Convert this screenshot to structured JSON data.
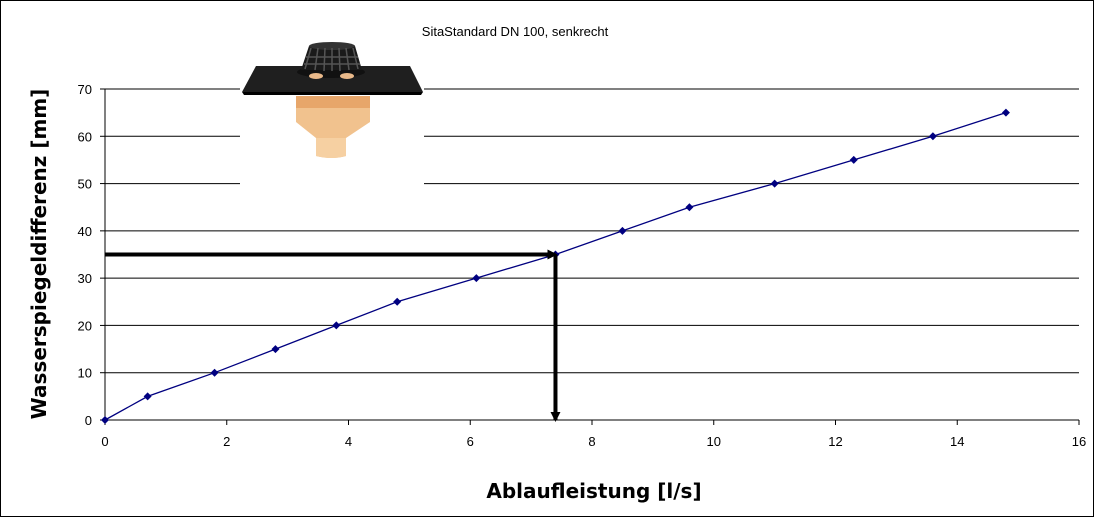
{
  "chart_data": {
    "type": "line",
    "title": "SitaStandard DN 100, senkrecht",
    "xlabel": "Ablaufleistung [l/s]",
    "ylabel": "Wasserspiegeldifferenz [mm]",
    "xlim": [
      0,
      16
    ],
    "ylim": [
      0,
      70
    ],
    "x_ticks": [
      "0",
      "2",
      "4",
      "6",
      "8",
      "10",
      "12",
      "14",
      "16"
    ],
    "y_ticks": [
      "0",
      "10",
      "20",
      "30",
      "40",
      "50",
      "60",
      "70"
    ],
    "grid": "horizontal",
    "series": [
      {
        "color": "#000080",
        "points": [
          [
            0,
            0
          ],
          [
            0.7,
            5
          ],
          [
            1.8,
            10
          ],
          [
            2.8,
            15
          ],
          [
            3.8,
            20
          ],
          [
            4.8,
            25
          ],
          [
            6.1,
            30
          ],
          [
            7.4,
            35
          ],
          [
            8.5,
            40
          ],
          [
            9.6,
            45
          ],
          [
            11.0,
            50
          ],
          [
            12.3,
            55
          ],
          [
            13.6,
            60
          ],
          [
            14.8,
            65
          ]
        ]
      }
    ],
    "annotations": [
      {
        "type": "arrow",
        "from": [
          0,
          35
        ],
        "to": [
          7.4,
          35
        ],
        "color": "#000000"
      },
      {
        "type": "arrow",
        "from": [
          7.4,
          35
        ],
        "to": [
          7.4,
          0
        ],
        "color": "#000000"
      }
    ],
    "inset_image": "roof-drain-product-icon"
  }
}
